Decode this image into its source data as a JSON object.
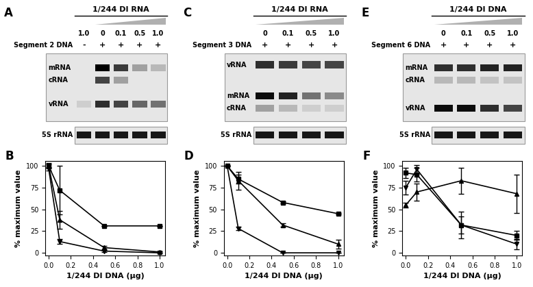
{
  "gels": [
    {
      "title": "A",
      "header": "1/244 DI RNA",
      "lane_labels": [
        "1.0",
        "0",
        "0.1",
        "0.5",
        "1.0"
      ],
      "row_label": "Segment 2 DNA",
      "row_marks": [
        "-",
        "+",
        "+",
        "+",
        "+"
      ],
      "bands": [
        {
          "name": "mRNA",
          "intensity": [
            0.0,
            1.0,
            0.75,
            0.3,
            0.2
          ]
        },
        {
          "name": "cRNA",
          "intensity": [
            0.0,
            0.7,
            0.3,
            0.0,
            0.0
          ]
        },
        {
          "name": "vRNA",
          "intensity": [
            0.1,
            0.8,
            0.7,
            0.55,
            0.5
          ]
        }
      ],
      "loading": {
        "name": "5S rRNA",
        "intensity": [
          0.9,
          0.9,
          0.9,
          0.9,
          0.9
        ]
      }
    },
    {
      "title": "C",
      "header": "1/244 DI RNA",
      "lane_labels": [
        "0",
        "0.1",
        "0.5",
        "1.0"
      ],
      "row_label": "Segment 3 DNA",
      "row_marks": [
        "+",
        "+",
        "+",
        "+"
      ],
      "bands": [
        {
          "name": "vRNA",
          "intensity": [
            0.8,
            0.75,
            0.7,
            0.7
          ]
        },
        {
          "name": "mRNA",
          "intensity": [
            0.95,
            0.85,
            0.5,
            0.4
          ]
        },
        {
          "name": "cRNA",
          "intensity": [
            0.3,
            0.2,
            0.1,
            0.1
          ]
        }
      ],
      "loading": {
        "name": "5S rRNA",
        "intensity": [
          0.9,
          0.9,
          0.9,
          0.9
        ]
      }
    },
    {
      "title": "E",
      "header": "1/244 DI DNA",
      "lane_labels": [
        "0",
        "0.1",
        "0.5",
        "1.0"
      ],
      "row_label": "Segment 6 DNA",
      "row_marks": [
        "+",
        "+",
        "+",
        "+"
      ],
      "bands": [
        {
          "name": "mRNA",
          "intensity": [
            0.8,
            0.8,
            0.85,
            0.85
          ]
        },
        {
          "name": "cRNA",
          "intensity": [
            0.2,
            0.2,
            0.15,
            0.15
          ]
        },
        {
          "name": "vRNA",
          "intensity": [
            0.95,
            0.95,
            0.8,
            0.7
          ]
        }
      ],
      "loading": {
        "name": "5S rRNA",
        "intensity": [
          0.9,
          0.9,
          0.9,
          0.9
        ]
      }
    }
  ],
  "chart_data": [
    {
      "type": "line",
      "title": "B",
      "x_label": "1/244 DI DNA (µg)",
      "y_label": "% maximum value",
      "x": [
        0,
        0.1,
        0.5,
        1.0
      ],
      "series": [
        {
          "marker": "square",
          "color": "#000000",
          "values": [
            100,
            72,
            31,
            31
          ],
          "errors": [
            3,
            28,
            0,
            0
          ]
        },
        {
          "marker": "triangle_up",
          "color": "#000000",
          "values": [
            100,
            38,
            6,
            1
          ],
          "errors": [
            2,
            10,
            2,
            1
          ]
        },
        {
          "marker": "triangle_down",
          "color": "#000000",
          "values": [
            97,
            13,
            2,
            0
          ],
          "errors": [
            2,
            3,
            1,
            0
          ]
        }
      ],
      "xlim": [
        -0.03,
        1.05
      ],
      "ylim": [
        -3,
        106
      ],
      "xticks": [
        {
          "value": 0,
          "label": "0.0"
        },
        {
          "value": 0.2,
          "label": "0.2"
        },
        {
          "value": 0.4,
          "label": "0.4"
        },
        {
          "value": 0.6,
          "label": "0.6"
        },
        {
          "value": 0.8,
          "label": "0.8"
        },
        {
          "value": 1.0,
          "label": "1.0"
        }
      ],
      "yticks": [
        0,
        25,
        50,
        75,
        100
      ]
    },
    {
      "type": "line",
      "title": "D",
      "x_label": "1/244 DI DNA (µg)",
      "y_label": "% maximum value",
      "x": [
        0,
        0.1,
        0.5,
        1.0
      ],
      "series": [
        {
          "marker": "square",
          "color": "#000000",
          "values": [
            100,
            85,
            58,
            45
          ],
          "errors": [
            0,
            5,
            1,
            1
          ]
        },
        {
          "marker": "triangle_up",
          "color": "#000000",
          "values": [
            100,
            83,
            32,
            10
          ],
          "errors": [
            0,
            10,
            2,
            5
          ]
        },
        {
          "marker": "triangle_down",
          "color": "#000000",
          "values": [
            100,
            28,
            0,
            0
          ],
          "errors": [
            0,
            2,
            0,
            0
          ]
        }
      ],
      "xlim": [
        -0.03,
        1.05
      ],
      "ylim": [
        -3,
        106
      ],
      "xticks": [
        {
          "value": 0,
          "label": "0.0"
        },
        {
          "value": 0.2,
          "label": "0.2"
        },
        {
          "value": 0.4,
          "label": "0.4"
        },
        {
          "value": 0.6,
          "label": "0.6"
        },
        {
          "value": 0.8,
          "label": "0.8"
        },
        {
          "value": 1.0,
          "label": "1.0"
        }
      ],
      "yticks": [
        0,
        25,
        50,
        75,
        100
      ]
    },
    {
      "type": "line",
      "title": "F",
      "x_label": "1/244 DI DNA (µg)",
      "y_label": "% maximum value",
      "x": [
        0,
        0.1,
        0.5,
        1.0
      ],
      "series": [
        {
          "marker": "triangle_up",
          "color": "#000000",
          "values": [
            55,
            70,
            83,
            68
          ],
          "errors": [
            3,
            10,
            15,
            22
          ]
        },
        {
          "marker": "square",
          "color": "#000000",
          "values": [
            92,
            90,
            32,
            20
          ],
          "errors": [
            6,
            8,
            15,
            5
          ]
        },
        {
          "marker": "triangle_down",
          "color": "#000000",
          "values": [
            75,
            96,
            32,
            10
          ],
          "errors": [
            8,
            5,
            10,
            6
          ]
        }
      ],
      "xlim": [
        -0.03,
        1.05
      ],
      "ylim": [
        -3,
        106
      ],
      "xticks": [
        {
          "value": 0,
          "label": "0.0"
        },
        {
          "value": 0.2,
          "label": "0.2"
        },
        {
          "value": 0.4,
          "label": "0.4"
        },
        {
          "value": 0.6,
          "label": "0.6"
        },
        {
          "value": 0.8,
          "label": "0.8"
        },
        {
          "value": 1.0,
          "label": "1.0"
        }
      ],
      "yticks": [
        0,
        25,
        50,
        75,
        100
      ]
    }
  ]
}
